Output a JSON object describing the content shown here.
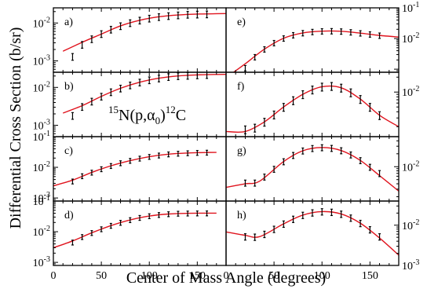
{
  "figure": {
    "ylabel": "Differential Cross Section (b/sr)",
    "xlabel": "Center of Mass Angle (degrees)",
    "reaction": {
      "pre_super": "15",
      "body1": "N(p,",
      "alpha": "α",
      "alpha_sub": "0",
      "body2": ")",
      "post_super": "12",
      "body3": "C"
    },
    "x_ticks": [
      "0",
      "50",
      "100",
      "150"
    ],
    "decade_base": "10",
    "fit_color": "#e0141e",
    "data_color": "#000000"
  },
  "chart_data": [
    {
      "type": "scatter",
      "label": "a)",
      "log_y": true,
      "xlim": [
        0,
        180
      ],
      "ylim_log10": [
        -3.3,
        -1.6
      ],
      "y_ticks": [
        {
          "exp": "-2",
          "v": -2
        },
        {
          "exp": "-3",
          "v": -3
        }
      ],
      "x": [
        20,
        30,
        40,
        50,
        60,
        70,
        80,
        90,
        100,
        110,
        120,
        130,
        140,
        150,
        160
      ],
      "y": [
        0.0013,
        0.0027,
        0.0038,
        0.0052,
        0.0068,
        0.0084,
        0.0101,
        0.0118,
        0.0133,
        0.0146,
        0.0155,
        0.0162,
        0.0168,
        0.017,
        0.0172
      ],
      "y_err_frac": 0.2,
      "fit": {
        "x": [
          10,
          30,
          50,
          70,
          90,
          110,
          130,
          150,
          170,
          180
        ],
        "y": [
          0.0018,
          0.0031,
          0.0051,
          0.0084,
          0.0118,
          0.0146,
          0.0163,
          0.0172,
          0.0176,
          0.0177
        ]
      }
    },
    {
      "type": "scatter",
      "label": "b)",
      "log_y": true,
      "xlim": [
        0,
        180
      ],
      "ylim_log10": [
        -3.3,
        -1.6
      ],
      "y_ticks": [
        {
          "exp": "-2",
          "v": -2
        },
        {
          "exp": "-3",
          "v": -3
        }
      ],
      "x": [
        20,
        30,
        40,
        50,
        60,
        70,
        80,
        90,
        100,
        110,
        120,
        130,
        140,
        150,
        160
      ],
      "y": [
        0.0018,
        0.0031,
        0.0043,
        0.0058,
        0.0076,
        0.0095,
        0.0115,
        0.0137,
        0.0157,
        0.0175,
        0.0191,
        0.0201,
        0.0206,
        0.0212,
        0.0216
      ],
      "y_err_frac": 0.2,
      "fit": {
        "x": [
          10,
          30,
          50,
          70,
          90,
          110,
          130,
          150,
          170,
          180
        ],
        "y": [
          0.0021,
          0.0033,
          0.0058,
          0.0095,
          0.0137,
          0.0175,
          0.0201,
          0.0214,
          0.022,
          0.0221
        ]
      }
    },
    {
      "type": "scatter",
      "label": "c)",
      "log_y": true,
      "xlim": [
        0,
        180
      ],
      "ylim_log10": [
        -3.1,
        -1.0
      ],
      "y_ticks": [
        {
          "exp": "-1",
          "v": -1
        },
        {
          "exp": "-2",
          "v": -2
        },
        {
          "exp": "-3",
          "v": -3
        }
      ],
      "x": [
        20,
        30,
        40,
        50,
        60,
        70,
        80,
        90,
        100,
        110,
        120,
        130,
        140,
        150,
        160
      ],
      "y": [
        0.0035,
        0.0052,
        0.0068,
        0.0088,
        0.0112,
        0.0138,
        0.0165,
        0.0195,
        0.0222,
        0.0246,
        0.0268,
        0.0282,
        0.0292,
        0.03,
        0.0305
      ],
      "y_err_frac": 0.18,
      "fit": {
        "x": [
          0,
          20,
          40,
          60,
          80,
          100,
          120,
          140,
          160,
          170
        ],
        "y": [
          0.0025,
          0.0038,
          0.0068,
          0.0112,
          0.0165,
          0.0222,
          0.0268,
          0.0292,
          0.0305,
          0.0307
        ]
      }
    },
    {
      "type": "scatter",
      "label": "d)",
      "log_y": true,
      "xlim": [
        0,
        180
      ],
      "ylim_log10": [
        -3.1,
        -1.0
      ],
      "y_ticks": [
        {
          "exp": "-1",
          "v": -1
        },
        {
          "exp": "-2",
          "v": -2
        },
        {
          "exp": "-3",
          "v": -3
        }
      ],
      "x": [
        20,
        30,
        40,
        50,
        60,
        70,
        80,
        90,
        100,
        110,
        120,
        130,
        140,
        150,
        160
      ],
      "y": [
        0.0045,
        0.0068,
        0.0092,
        0.0122,
        0.0158,
        0.0198,
        0.0242,
        0.0286,
        0.0325,
        0.0356,
        0.0378,
        0.0392,
        0.0398,
        0.0401,
        0.0402
      ],
      "y_err_frac": 0.18,
      "fit": {
        "x": [
          0,
          20,
          40,
          60,
          80,
          100,
          120,
          140,
          160,
          170
        ],
        "y": [
          0.003,
          0.005,
          0.0092,
          0.0158,
          0.0242,
          0.0325,
          0.0378,
          0.0398,
          0.0402,
          0.0402
        ]
      }
    },
    {
      "type": "scatter",
      "label": "e)",
      "log_y": true,
      "xlim": [
        0,
        180
      ],
      "ylim_log10": [
        -3.1,
        -1.0
      ],
      "y_ticks": [
        {
          "exp": "-1",
          "v": -1
        },
        {
          "exp": "-2",
          "v": -2
        }
      ],
      "x": [
        20,
        30,
        40,
        50,
        60,
        70,
        80,
        90,
        100,
        110,
        120,
        130,
        140,
        150,
        160
      ],
      "y": [
        0.0011,
        0.0025,
        0.0045,
        0.0072,
        0.0102,
        0.013,
        0.0152,
        0.0166,
        0.0174,
        0.0176,
        0.0172,
        0.0162,
        0.015,
        0.0138,
        0.0126
      ],
      "y_err_frac": 0.2,
      "fit": {
        "x": [
          8,
          20,
          40,
          60,
          80,
          100,
          120,
          140,
          160,
          180
        ],
        "y": [
          0.0008,
          0.0015,
          0.0045,
          0.0102,
          0.0152,
          0.0174,
          0.0172,
          0.015,
          0.0126,
          0.0112
        ]
      }
    },
    {
      "type": "scatter",
      "label": "f)",
      "log_y": true,
      "xlim": [
        0,
        180
      ],
      "ylim_log10": [
        -2.9,
        -1.6
      ],
      "y_ticks": [
        {
          "exp": "-2",
          "v": -2
        }
      ],
      "x": [
        20,
        30,
        40,
        50,
        60,
        70,
        80,
        90,
        100,
        110,
        120,
        130,
        140,
        150,
        160
      ],
      "y": [
        0.00175,
        0.0019,
        0.0025,
        0.0035,
        0.005,
        0.0068,
        0.009,
        0.0112,
        0.0128,
        0.0132,
        0.0122,
        0.0098,
        0.0072,
        0.005,
        0.0034
      ],
      "y_err_frac": 0.18,
      "fit": {
        "x": [
          0,
          20,
          40,
          60,
          80,
          100,
          120,
          140,
          160,
          180
        ],
        "y": [
          0.0016,
          0.0016,
          0.0025,
          0.005,
          0.009,
          0.0128,
          0.0122,
          0.0072,
          0.0034,
          0.002
        ]
      }
    },
    {
      "type": "scatter",
      "label": "g)",
      "log_y": true,
      "xlim": [
        0,
        180
      ],
      "ylim_log10": [
        -2.8,
        -1.3
      ],
      "y_ticks": [
        {
          "exp": "-2",
          "v": -2
        }
      ],
      "x": [
        20,
        30,
        40,
        50,
        60,
        70,
        80,
        90,
        100,
        110,
        120,
        130,
        140,
        150,
        160
      ],
      "y": [
        0.0042,
        0.0042,
        0.0058,
        0.0088,
        0.0132,
        0.0185,
        0.0235,
        0.0268,
        0.028,
        0.027,
        0.0238,
        0.019,
        0.014,
        0.0098,
        0.007
      ],
      "y_err_frac": 0.16,
      "fit": {
        "x": [
          0,
          20,
          35,
          60,
          80,
          100,
          120,
          140,
          160,
          180
        ],
        "y": [
          0.0033,
          0.004,
          0.0046,
          0.0132,
          0.0235,
          0.028,
          0.0238,
          0.014,
          0.0062,
          0.0027
        ]
      }
    },
    {
      "type": "scatter",
      "label": "h)",
      "log_y": true,
      "xlim": [
        0,
        180
      ],
      "ylim_log10": [
        -3.0,
        -1.4
      ],
      "y_ticks": [
        {
          "exp": "-2",
          "v": -2
        },
        {
          "exp": "-3",
          "v": -3
        }
      ],
      "x": [
        20,
        30,
        40,
        50,
        60,
        70,
        80,
        90,
        100,
        110,
        120,
        130,
        140,
        150,
        160
      ],
      "y": [
        0.0052,
        0.0051,
        0.006,
        0.008,
        0.0108,
        0.0142,
        0.0178,
        0.0205,
        0.0218,
        0.0212,
        0.019,
        0.0152,
        0.0112,
        0.0078,
        0.0052
      ],
      "y_err_frac": 0.18,
      "fit": {
        "x": [
          0,
          20,
          35,
          60,
          80,
          100,
          120,
          140,
          160,
          180
        ],
        "y": [
          0.0068,
          0.0056,
          0.0052,
          0.0108,
          0.0178,
          0.0218,
          0.019,
          0.0112,
          0.0048,
          0.0018
        ]
      }
    }
  ]
}
